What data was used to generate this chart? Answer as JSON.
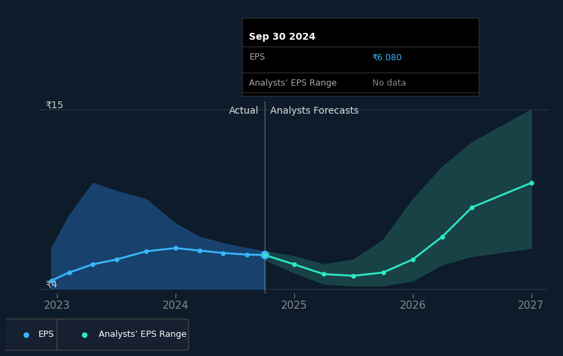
{
  "bg_color": "#0d1b2a",
  "chart_bg": "#0d1b2a",
  "y_min": 4,
  "y_max": 15,
  "divider_x": 2024.75,
  "actual_label": "Actual",
  "forecast_label": "Analysts Forecasts",
  "y_ticks": [
    4,
    15
  ],
  "y_tick_labels": [
    "₹4",
    "₹15"
  ],
  "x_ticks": [
    2023,
    2024,
    2025,
    2026,
    2027
  ],
  "eps_color": "#38b6ff",
  "forecast_eps_color": "#2de8c0",
  "actual_band_color": "#1a4a7a",
  "forecast_band_color": "#1a4a4a",
  "eps_actual_x": [
    2022.95,
    2023.1,
    2023.3,
    2023.5,
    2023.75,
    2024.0,
    2024.2,
    2024.4,
    2024.6,
    2024.75
  ],
  "eps_actual_y": [
    4.5,
    5.0,
    5.5,
    5.8,
    6.3,
    6.5,
    6.35,
    6.2,
    6.1,
    6.08
  ],
  "eps_forecast_x": [
    2024.75,
    2025.0,
    2025.25,
    2025.5,
    2025.75,
    2026.0,
    2026.25,
    2026.5,
    2027.0
  ],
  "eps_forecast_y": [
    6.08,
    5.5,
    4.9,
    4.8,
    5.0,
    5.8,
    7.2,
    9.0,
    10.5
  ],
  "band_actual_upper_x": [
    2022.95,
    2023.1,
    2023.3,
    2023.5,
    2023.75,
    2024.0,
    2024.2,
    2024.4,
    2024.6,
    2024.75
  ],
  "band_actual_upper_y": [
    6.5,
    8.5,
    10.5,
    10.0,
    9.5,
    8.0,
    7.2,
    6.8,
    6.5,
    6.3
  ],
  "band_actual_lower_y": [
    4.0,
    4.0,
    4.0,
    4.0,
    4.0,
    4.0,
    4.0,
    4.0,
    4.0,
    4.0
  ],
  "band_forecast_upper_x": [
    2024.75,
    2025.0,
    2025.25,
    2025.5,
    2025.75,
    2026.0,
    2026.25,
    2026.5,
    2027.0
  ],
  "band_forecast_upper_y": [
    6.3,
    6.0,
    5.5,
    5.8,
    7.0,
    9.5,
    11.5,
    13.0,
    15.0
  ],
  "band_forecast_lower_y": [
    5.8,
    5.0,
    4.3,
    4.2,
    4.2,
    4.5,
    5.5,
    6.0,
    6.5
  ],
  "tooltip_date": "Sep 30 2024",
  "tooltip_eps_label": "EPS",
  "tooltip_eps_value": "₹6.080",
  "tooltip_range_label": "Analysts’ EPS Range",
  "tooltip_range_value": "No data",
  "legend_eps_label": "EPS",
  "legend_range_label": "Analysts’ EPS Range"
}
